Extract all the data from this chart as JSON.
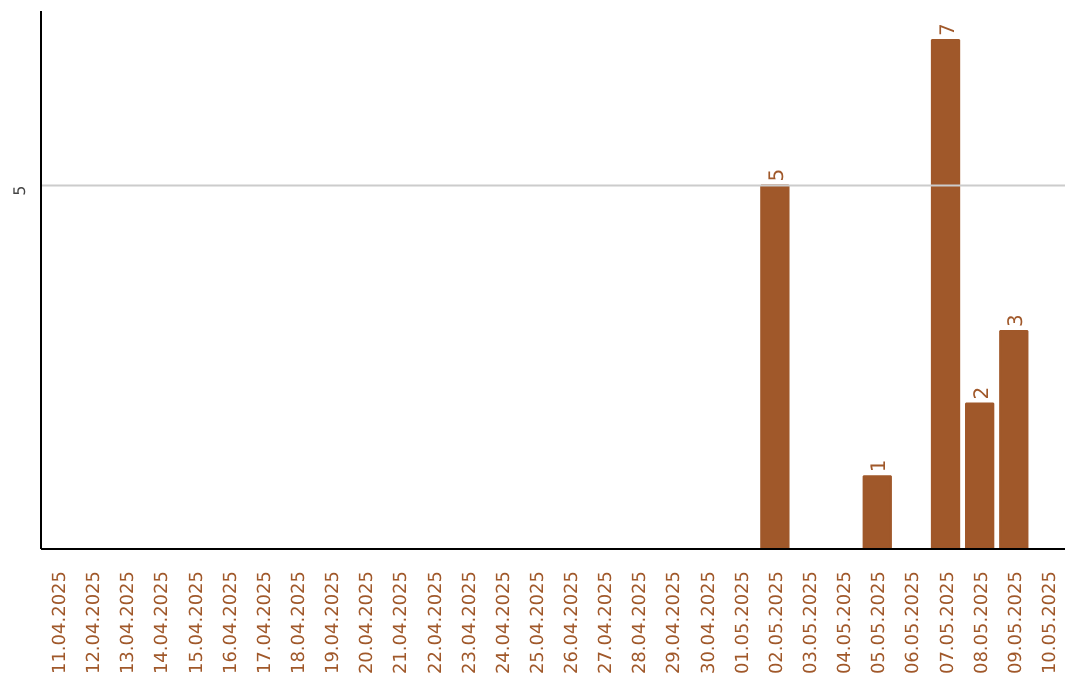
{
  "chart_data": {
    "type": "bar",
    "categories": [
      "11.04.2025",
      "12.04.2025",
      "13.04.2025",
      "14.04.2025",
      "15.04.2025",
      "16.04.2025",
      "17.04.2025",
      "18.04.2025",
      "19.04.2025",
      "20.04.2025",
      "21.04.2025",
      "22.04.2025",
      "23.04.2025",
      "24.04.2025",
      "25.04.2025",
      "26.04.2025",
      "27.04.2025",
      "28.04.2025",
      "29.04.2025",
      "30.04.2025",
      "01.05.2025",
      "02.05.2025",
      "03.05.2025",
      "04.05.2025",
      "05.05.2025",
      "06.05.2025",
      "07.05.2025",
      "08.05.2025",
      "09.05.2025",
      "10.05.2025"
    ],
    "values": [
      null,
      null,
      null,
      null,
      null,
      null,
      null,
      null,
      null,
      null,
      null,
      null,
      null,
      null,
      null,
      null,
      null,
      null,
      null,
      null,
      null,
      5,
      null,
      null,
      1,
      null,
      7,
      2,
      3,
      null
    ],
    "data_labels": true,
    "ylim": [
      0,
      7.4
    ],
    "color": "#a0582a",
    "ref_lines": [
      {
        "axis": "y",
        "value": 5,
        "label": "5",
        "color": "#cccccc"
      }
    ]
  }
}
